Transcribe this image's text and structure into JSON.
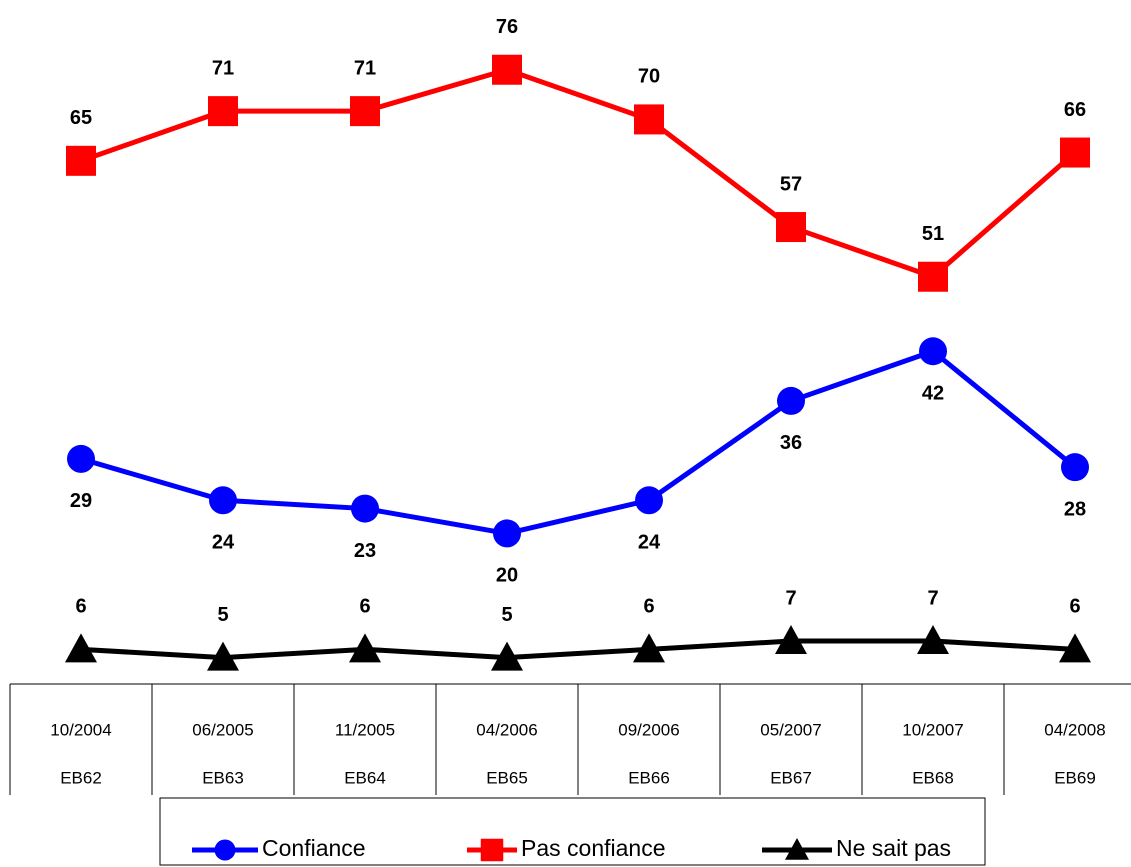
{
  "chart_data": {
    "type": "line",
    "categories": [
      "10/2004",
      "06/2005",
      "11/2005",
      "04/2006",
      "09/2006",
      "05/2007",
      "10/2007",
      "04/2008"
    ],
    "category_sublabels": [
      "EB62",
      "EB63",
      "EB64",
      "EB65",
      "EB66",
      "EB67",
      "EB68",
      "EB69"
    ],
    "series": [
      {
        "name": "Confiance",
        "color": "#0000ff",
        "marker": "circle",
        "values": [
          29,
          24,
          23,
          20,
          24,
          36,
          42,
          28
        ]
      },
      {
        "name": "Pas confiance",
        "color": "#ff0000",
        "marker": "square",
        "values": [
          65,
          71,
          71,
          76,
          70,
          57,
          51,
          66
        ]
      },
      {
        "name": "Ne sait pas",
        "color": "#000000",
        "marker": "triangle",
        "values": [
          6,
          5,
          6,
          5,
          6,
          7,
          7,
          6
        ]
      }
    ],
    "ylim": [
      0,
      84
    ],
    "legend": "bottom"
  }
}
